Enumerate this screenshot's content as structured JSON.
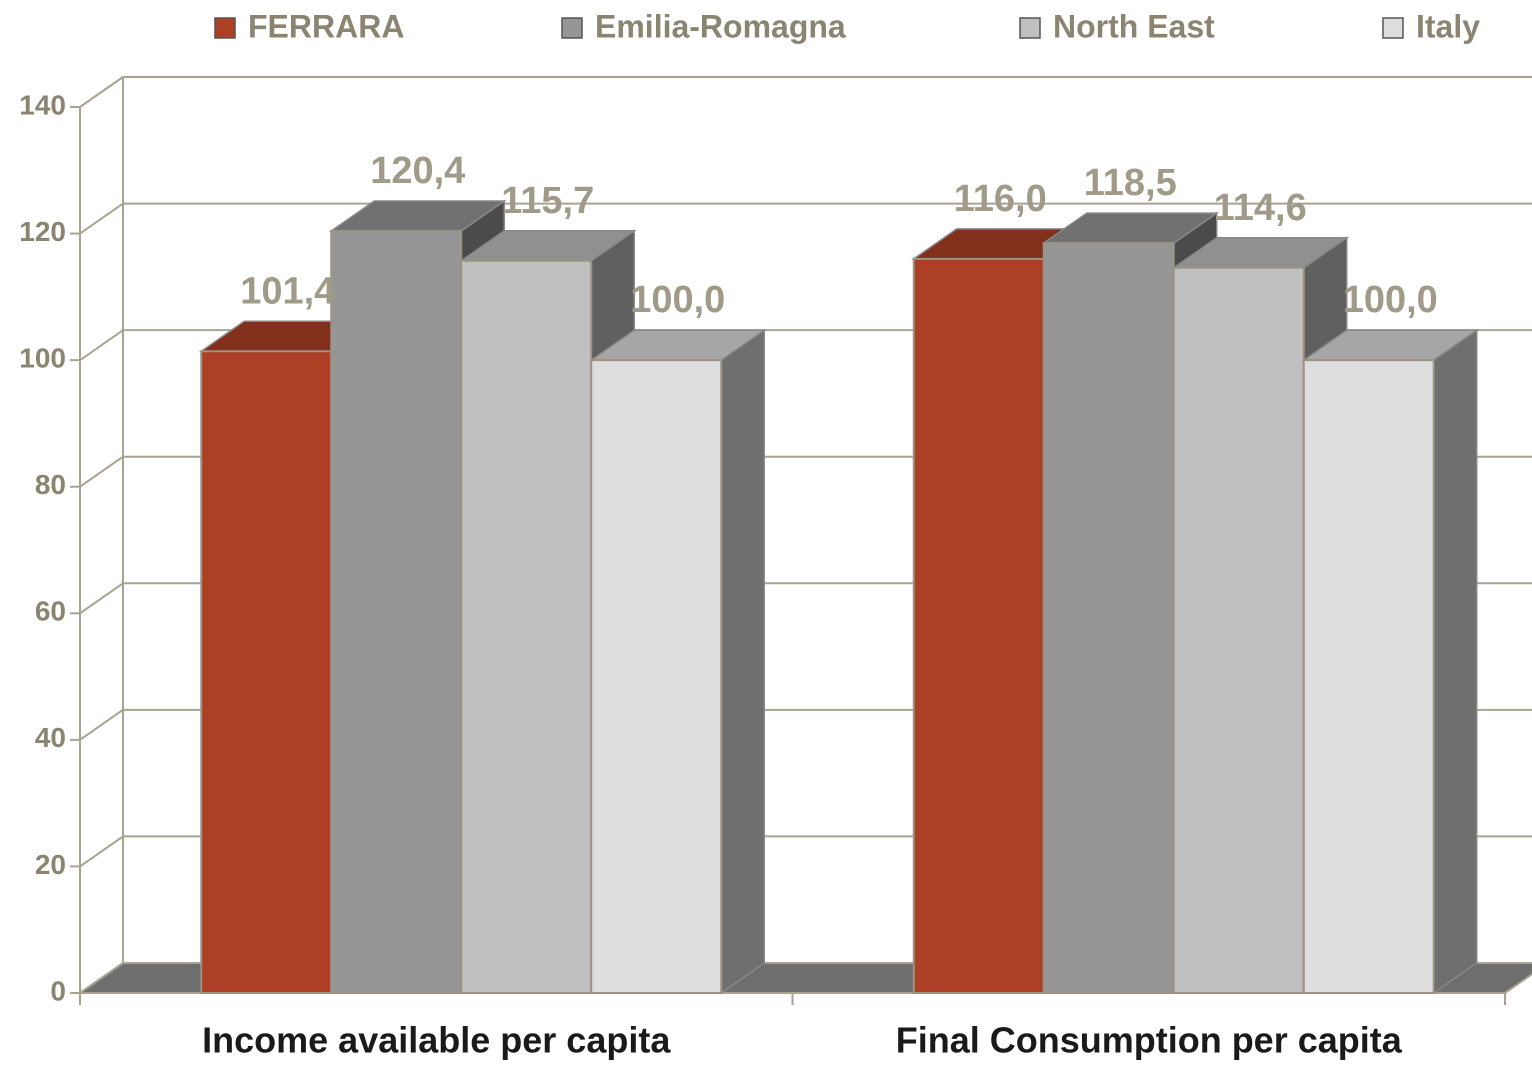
{
  "chart_data": {
    "type": "bar3d",
    "categories": [
      "Income available per capita",
      "Final Consumption per capita"
    ],
    "series": [
      {
        "name": "FERRARA",
        "color": "#ad3f24",
        "values": [
          101.4,
          116.0
        ],
        "value_labels": [
          "101,4",
          "116,0"
        ]
      },
      {
        "name": "Emilia-Romagna",
        "color": "#969696",
        "values": [
          120.4,
          118.5
        ],
        "value_labels": [
          "120,4",
          "118,5"
        ]
      },
      {
        "name": "North East",
        "color": "#c0c0c0",
        "values": [
          115.7,
          114.6
        ],
        "value_labels": [
          "115,7",
          "114,6"
        ]
      },
      {
        "name": "Italy",
        "color": "#dddddd",
        "values": [
          100.0,
          100.0
        ],
        "value_labels": [
          "100,0",
          "100,0"
        ]
      }
    ],
    "ylim": [
      0,
      140
    ],
    "yticks": [
      0,
      20,
      40,
      60,
      80,
      100,
      120,
      140
    ],
    "grid": true,
    "legend": "top"
  }
}
